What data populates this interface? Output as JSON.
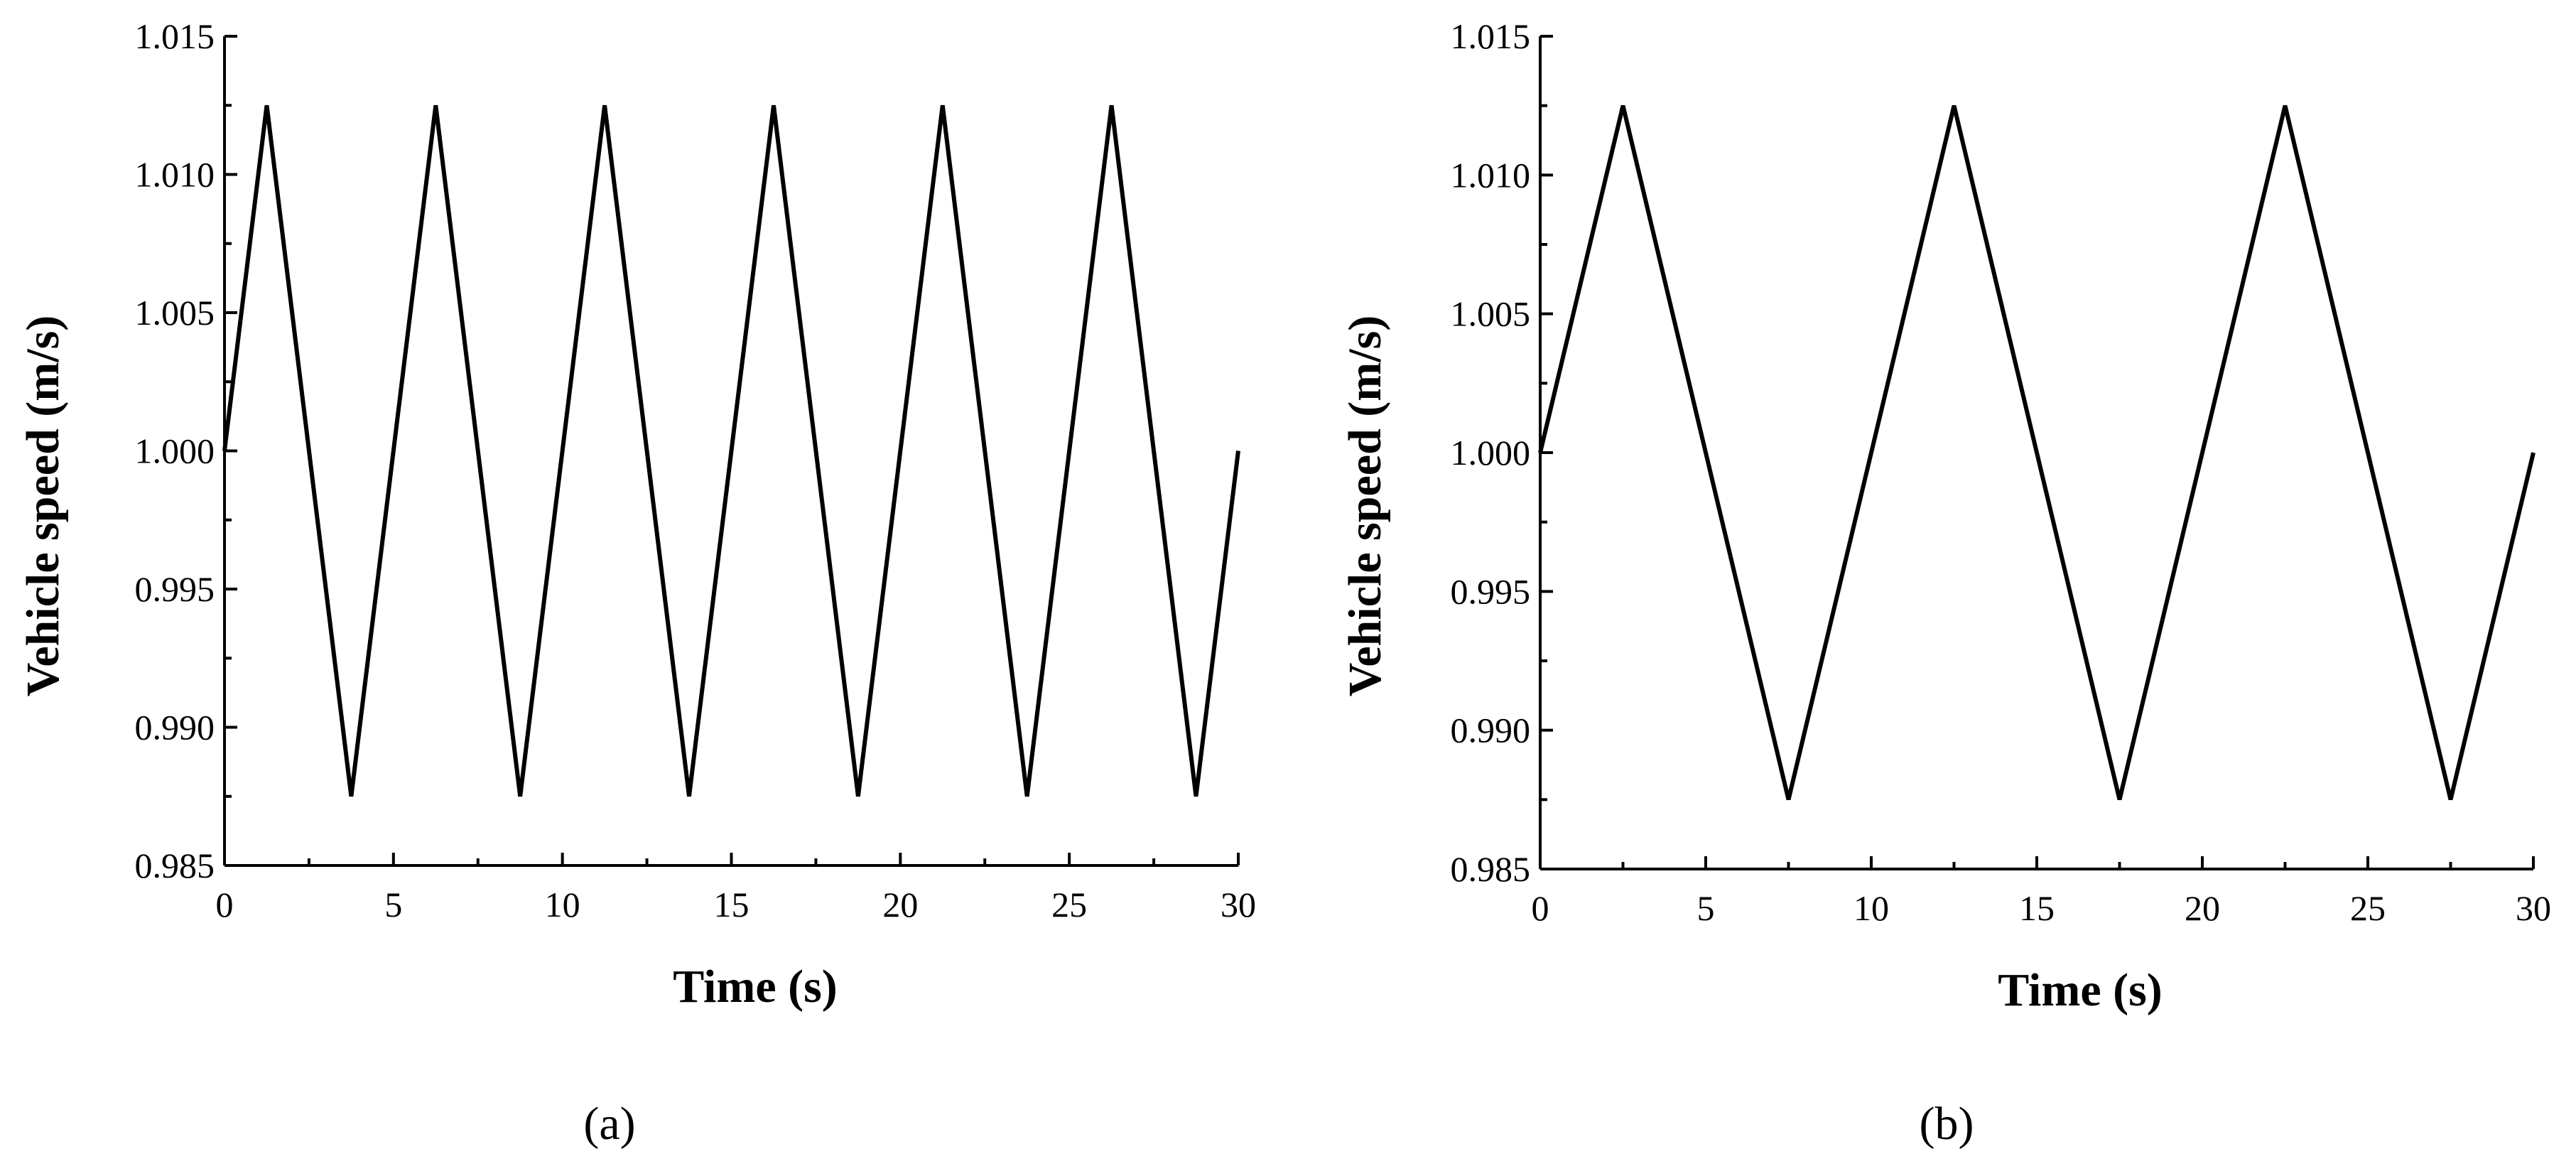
{
  "chart_data": [
    {
      "type": "line",
      "panel_label": "(a)",
      "title": "",
      "xlabel": "Time (s)",
      "ylabel": "Vehicle speed (m/s)",
      "xlim": [
        0,
        30
      ],
      "ylim": [
        0.985,
        1.015
      ],
      "xticks": [
        0,
        5,
        10,
        15,
        20,
        25,
        30
      ],
      "xtick_labels": [
        "0",
        "5",
        "10",
        "15",
        "20",
        "25",
        "30"
      ],
      "yticks": [
        0.985,
        0.99,
        0.995,
        1.0,
        1.005,
        1.01,
        1.015
      ],
      "ytick_labels": [
        "0.985",
        "0.990",
        "0.995",
        "1.000",
        "1.005",
        "1.010",
        "1.015"
      ],
      "grid": false,
      "legend": "none",
      "series": [
        {
          "color": "#000000",
          "x": [
            0,
            1.25,
            3.75,
            6.25,
            8.75,
            11.25,
            13.75,
            16.25,
            18.75,
            21.25,
            23.75,
            26.25,
            28.75,
            30
          ],
          "y": [
            1.0,
            1.0125,
            0.9875,
            1.0125,
            0.9875,
            1.0125,
            0.9875,
            1.0125,
            0.9875,
            1.0125,
            0.9875,
            1.0125,
            0.9875,
            1.0
          ]
        }
      ]
    },
    {
      "type": "line",
      "panel_label": "(b)",
      "title": "",
      "xlabel": "Time (s)",
      "ylabel": "Vehicle speed (m/s)",
      "xlim": [
        0,
        30
      ],
      "ylim": [
        0.985,
        1.015
      ],
      "xticks": [
        0,
        5,
        10,
        15,
        20,
        25,
        30
      ],
      "xtick_labels": [
        "0",
        "5",
        "10",
        "15",
        "20",
        "25",
        "30"
      ],
      "yticks": [
        0.985,
        0.99,
        0.995,
        1.0,
        1.005,
        1.01,
        1.015
      ],
      "ytick_labels": [
        "0.985",
        "0.990",
        "0.995",
        "1.000",
        "1.005",
        "1.010",
        "1.015"
      ],
      "grid": false,
      "legend": "none",
      "series": [
        {
          "color": "#000000",
          "x": [
            0,
            2.5,
            7.5,
            12.5,
            17.5,
            22.5,
            27.5,
            30
          ],
          "y": [
            1.0,
            1.0125,
            0.9875,
            1.0125,
            0.9875,
            1.0125,
            0.9875,
            1.0
          ]
        }
      ]
    }
  ]
}
